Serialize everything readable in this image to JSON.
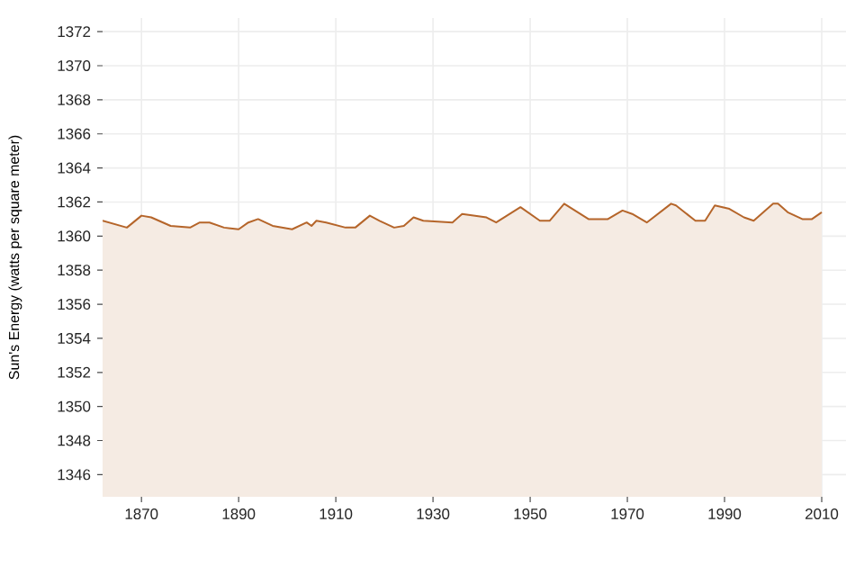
{
  "chart_data": {
    "type": "area",
    "ylabel": "Sun's Energy (watts per square meter)",
    "x": [
      1862,
      1867,
      1870,
      1872,
      1876,
      1880,
      1882,
      1884,
      1887,
      1890,
      1892,
      1894,
      1897,
      1901,
      1904,
      1905,
      1906,
      1908,
      1912,
      1914,
      1917,
      1919,
      1922,
      1924,
      1926,
      1928,
      1934,
      1936,
      1941,
      1943,
      1948,
      1952,
      1954,
      1957,
      1962,
      1966,
      1969,
      1971,
      1974,
      1979,
      1980,
      1984,
      1986,
      1988,
      1991,
      1994,
      1996,
      2000,
      2001,
      2003,
      2006,
      2008,
      2010
    ],
    "series": [
      {
        "color": "#b5652a",
        "values": [
          1360.9,
          1360.5,
          1361.2,
          1361.1,
          1360.6,
          1360.5,
          1360.8,
          1360.8,
          1360.5,
          1360.4,
          1360.8,
          1361.0,
          1360.6,
          1360.4,
          1360.8,
          1360.6,
          1360.9,
          1360.8,
          1360.5,
          1360.5,
          1361.2,
          1360.9,
          1360.5,
          1360.6,
          1361.1,
          1360.9,
          1360.8,
          1361.3,
          1361.1,
          1360.8,
          1361.7,
          1360.9,
          1360.9,
          1361.9,
          1361.0,
          1361.0,
          1361.5,
          1361.3,
          1360.8,
          1361.9,
          1361.8,
          1360.9,
          1360.9,
          1361.8,
          1361.6,
          1361.1,
          1360.9,
          1361.9,
          1361.9,
          1361.4,
          1361.0,
          1361.0,
          1361.4
        ]
      }
    ],
    "xlim": [
      1862,
      2015
    ],
    "ylim": [
      1344.7,
      1372.8
    ],
    "xticks": [
      1870,
      1890,
      1910,
      1930,
      1950,
      1970,
      1990,
      2010
    ],
    "yticks": [
      1346,
      1348,
      1350,
      1352,
      1354,
      1356,
      1358,
      1360,
      1362,
      1364,
      1366,
      1368,
      1370,
      1372
    ],
    "grid": true
  }
}
